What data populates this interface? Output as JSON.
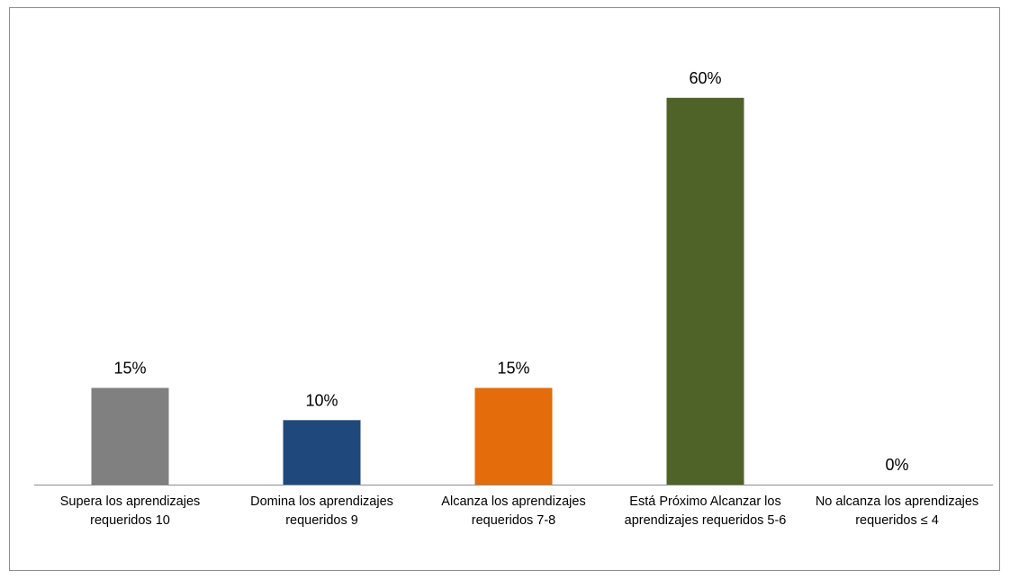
{
  "chart_data": {
    "type": "bar",
    "categories": [
      "Supera los aprendizajes requeridos 10",
      "Domina los aprendizajes requeridos 9",
      "Alcanza los aprendizajes requeridos 7-8",
      "Está Próximo Alcanzar los aprendizajes requeridos 5-6",
      "No alcanza los aprendizajes requeridos ≤ 4"
    ],
    "values": [
      15,
      10,
      15,
      60,
      0
    ],
    "value_labels": [
      "15%",
      "10%",
      "15%",
      "60%",
      "0%"
    ],
    "colors": [
      "#808080",
      "#1f497d",
      "#e46c0a",
      "#4f6228",
      "#7f7f7f"
    ]
  }
}
